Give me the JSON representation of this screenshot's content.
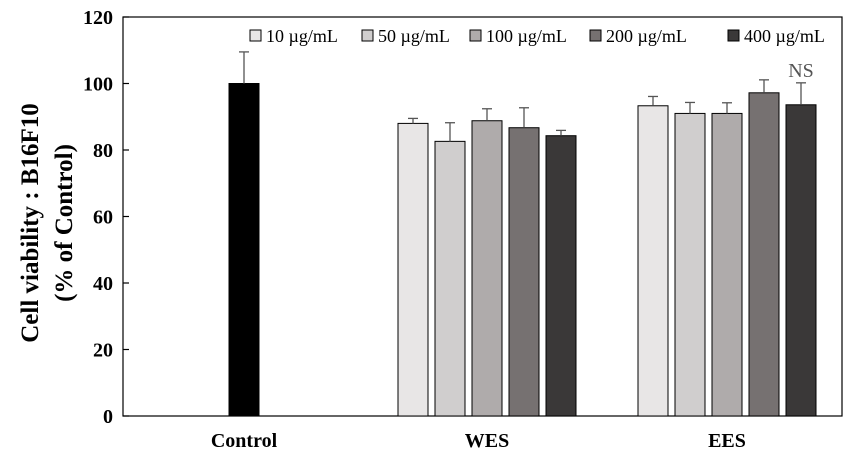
{
  "chart_data": {
    "type": "bar",
    "title": "",
    "xlabel": "",
    "ylabel_line1": "Cell viability : B16F10",
    "ylabel_line2": "(% of Control)",
    "ylim": [
      0,
      120
    ],
    "yticks": [
      0,
      20,
      40,
      60,
      80,
      100,
      120
    ],
    "groups": [
      "Control",
      "WES",
      "EES"
    ],
    "control": {
      "label": "Control",
      "value": 100,
      "error": 9.5,
      "color": "#000000"
    },
    "series": [
      {
        "name": "10 µg/mL",
        "color": "#e8e6e6",
        "values": [
          null,
          88,
          93.3
        ],
        "errors": [
          null,
          1.5,
          2.8
        ]
      },
      {
        "name": "50 µg/mL",
        "color": "#d0cece",
        "values": [
          null,
          82.6,
          91
        ],
        "errors": [
          null,
          5.6,
          3.3
        ]
      },
      {
        "name": "100 µg/mL",
        "color": "#afabab",
        "values": [
          null,
          88.8,
          91
        ],
        "errors": [
          null,
          3.6,
          3.2
        ]
      },
      {
        "name": "200 µg/mL",
        "color": "#767171",
        "values": [
          null,
          86.7,
          97.2
        ],
        "errors": [
          null,
          6,
          3.9
        ]
      },
      {
        "name": "400 µg/mL",
        "color": "#3a3838",
        "values": [
          null,
          84.3,
          93.6
        ],
        "errors": [
          null,
          1.6,
          6.6
        ]
      }
    ],
    "annotations": [
      {
        "text": "NS",
        "group": "EES",
        "series": "400 µg/mL"
      }
    ],
    "legend_position": "top-right",
    "grid": false
  }
}
